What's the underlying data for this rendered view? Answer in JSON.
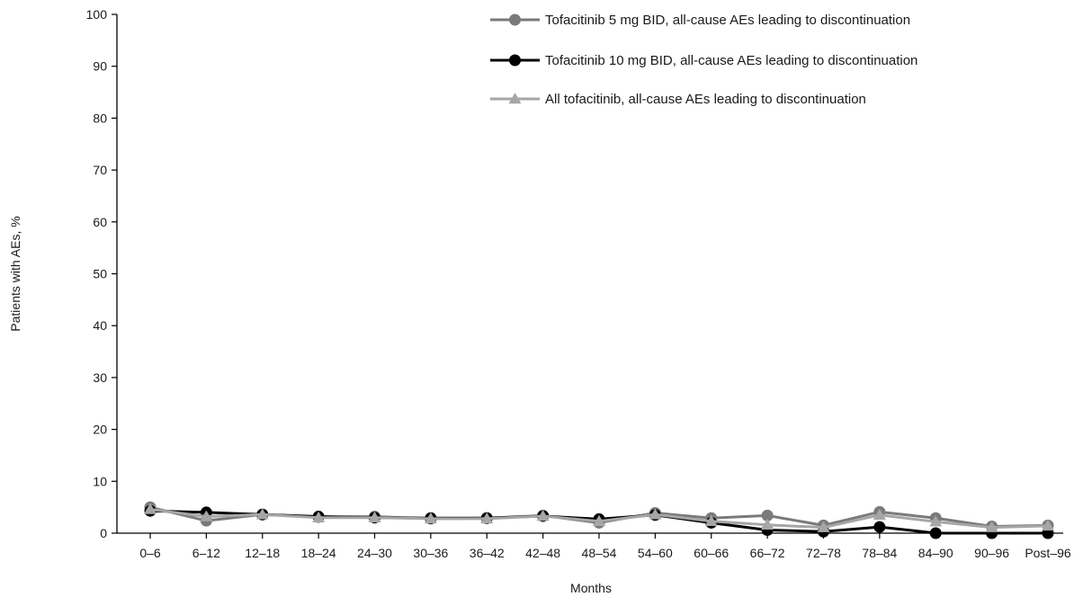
{
  "chart_data": {
    "type": "line",
    "xlabel": "Months",
    "ylabel": "Patients with AEs, %",
    "ylim": [
      0,
      100
    ],
    "yticks": [
      0,
      10,
      20,
      30,
      40,
      50,
      60,
      70,
      80,
      90,
      100
    ],
    "categories": [
      "0–6",
      "6–12",
      "12–18",
      "18–24",
      "24–30",
      "30–36",
      "36–42",
      "42–48",
      "48–54",
      "54–60",
      "60–66",
      "66–72",
      "72–78",
      "78–84",
      "84–90",
      "90–96",
      "Post–96"
    ],
    "legend_position": "top-right",
    "grid": false,
    "series": [
      {
        "name": "Tofacitinib 5 mg BID, all-cause AEs leading to discontinuation",
        "color": "#7a7a7a",
        "marker": "circle",
        "values": [
          5.0,
          2.4,
          3.6,
          3.1,
          3.2,
          2.8,
          2.9,
          3.4,
          2.0,
          3.9,
          2.9,
          3.4,
          1.5,
          4.1,
          2.9,
          1.3,
          1.5
        ]
      },
      {
        "name": "Tofacitinib 10 mg BID, all-cause AEs leading to discontinuation",
        "color": "#000000",
        "marker": "circle",
        "values": [
          4.3,
          4.0,
          3.6,
          3.2,
          3.0,
          2.9,
          2.9,
          3.3,
          2.7,
          3.5,
          2.0,
          0.6,
          0.3,
          1.2,
          0.0,
          0.0,
          0.0
        ]
      },
      {
        "name": "All tofacitinib, all-cause AEs leading to discontinuation",
        "color": "#a6a6a6",
        "marker": "triangle",
        "values": [
          4.6,
          3.2,
          3.6,
          3.0,
          3.0,
          2.8,
          2.8,
          3.3,
          2.3,
          3.6,
          2.3,
          1.6,
          1.1,
          3.5,
          2.2,
          1.1,
          1.4
        ]
      }
    ]
  }
}
